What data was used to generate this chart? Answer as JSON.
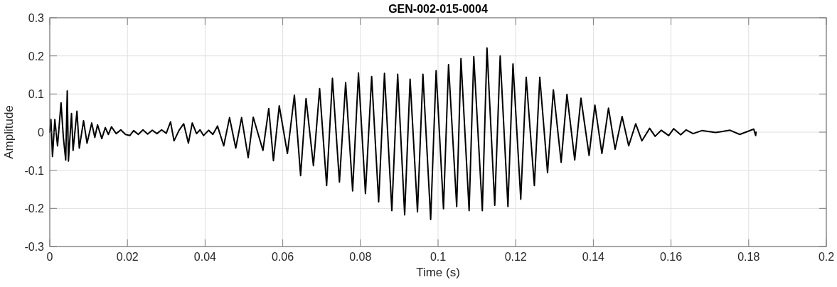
{
  "chart_data": {
    "type": "line",
    "title": "GEN-002-015-0004",
    "xlabel": "Time (s)",
    "ylabel": "Amplitude",
    "xlim": [
      0,
      0.2
    ],
    "ylim": [
      -0.3,
      0.3
    ],
    "xticks": [
      0,
      0.02,
      0.04,
      0.06,
      0.08,
      0.1,
      0.12,
      0.14,
      0.16,
      0.18,
      0.2
    ],
    "yticks": [
      -0.3,
      -0.2,
      -0.1,
      0,
      0.1,
      0.2,
      0.3
    ],
    "grid": true,
    "series": [
      {
        "color": "#000000",
        "x": [
          0,
          0.0003,
          0.0007,
          0.0013,
          0.002,
          0.0029,
          0.0035,
          0.0041,
          0.0045,
          0.0048,
          0.0056,
          0.006,
          0.007,
          0.0076,
          0.0087,
          0.0096,
          0.0108,
          0.0116,
          0.0123,
          0.0134,
          0.0143,
          0.0151,
          0.0159,
          0.0171,
          0.0183,
          0.0195,
          0.0206,
          0.0216,
          0.0228,
          0.024,
          0.0252,
          0.0264,
          0.0276,
          0.0288,
          0.03,
          0.0311,
          0.032,
          0.0333,
          0.0345,
          0.0357,
          0.0367,
          0.0378,
          0.0387,
          0.0396,
          0.0409,
          0.042,
          0.0432,
          0.0448,
          0.0463,
          0.0479,
          0.0494,
          0.0511,
          0.0524,
          0.0549,
          0.0564,
          0.0576,
          0.0591,
          0.0612,
          0.063,
          0.0646,
          0.066,
          0.0679,
          0.0695,
          0.0713,
          0.0728,
          0.0746,
          0.0762,
          0.078,
          0.0795,
          0.0813,
          0.0829,
          0.0847,
          0.0862,
          0.0881,
          0.0896,
          0.0914,
          0.0928,
          0.0947,
          0.0961,
          0.0981,
          0.0995,
          0.1014,
          0.1027,
          0.1048,
          0.1059,
          0.108,
          0.1092,
          0.1114,
          0.1126,
          0.1146,
          0.116,
          0.118,
          0.1193,
          0.1213,
          0.1227,
          0.1248,
          0.1262,
          0.1282,
          0.1297,
          0.1317,
          0.1332,
          0.1352,
          0.1368,
          0.1389,
          0.1404,
          0.1422,
          0.1439,
          0.1456,
          0.1474,
          0.1491,
          0.1509,
          0.1525,
          0.1545,
          0.1559,
          0.1575,
          0.1594,
          0.1607,
          0.1625,
          0.1639,
          0.1657,
          0.1679,
          0.1715,
          0.1752,
          0.1777,
          0.1813,
          0.1818,
          0.1819
        ],
        "values": [
          0,
          0.033,
          -0.064,
          0.033,
          -0.036,
          0.077,
          -0.014,
          -0.073,
          0.108,
          -0.076,
          0.049,
          -0.048,
          0.055,
          -0.042,
          0.03,
          -0.029,
          0.024,
          -0.014,
          0.019,
          -0.017,
          0.012,
          -0.006,
          0.014,
          -0.004,
          0.006,
          -0.006,
          -0.009,
          0.004,
          -0.006,
          0.006,
          -0.005,
          0.005,
          -0.004,
          0.006,
          -0.003,
          0.027,
          -0.023,
          0.005,
          0.022,
          -0.029,
          0.024,
          -0.004,
          0.006,
          -0.009,
          0.005,
          -0.006,
          0.016,
          -0.036,
          0.038,
          -0.042,
          0.038,
          -0.067,
          0.039,
          -0.048,
          0.062,
          -0.075,
          0.069,
          -0.056,
          0.097,
          -0.114,
          0.088,
          -0.088,
          0.114,
          -0.14,
          0.141,
          -0.131,
          0.13,
          -0.154,
          0.155,
          -0.161,
          0.146,
          -0.183,
          0.154,
          -0.206,
          0.152,
          -0.217,
          0.139,
          -0.209,
          0.152,
          -0.229,
          0.161,
          -0.201,
          0.177,
          -0.195,
          0.193,
          -0.206,
          0.198,
          -0.206,
          0.221,
          -0.192,
          0.2,
          -0.195,
          0.179,
          -0.176,
          0.144,
          -0.14,
          0.144,
          -0.106,
          0.111,
          -0.079,
          0.099,
          -0.073,
          0.089,
          -0.061,
          0.071,
          -0.056,
          0.063,
          -0.045,
          0.041,
          -0.036,
          0.022,
          -0.023,
          0.01,
          -0.011,
          0.005,
          -0.009,
          0.009,
          -0.007,
          0.006,
          -0.004,
          0.004,
          -0.001,
          0.005,
          -0.006,
          0.008,
          -0.009,
          0
        ]
      }
    ]
  }
}
